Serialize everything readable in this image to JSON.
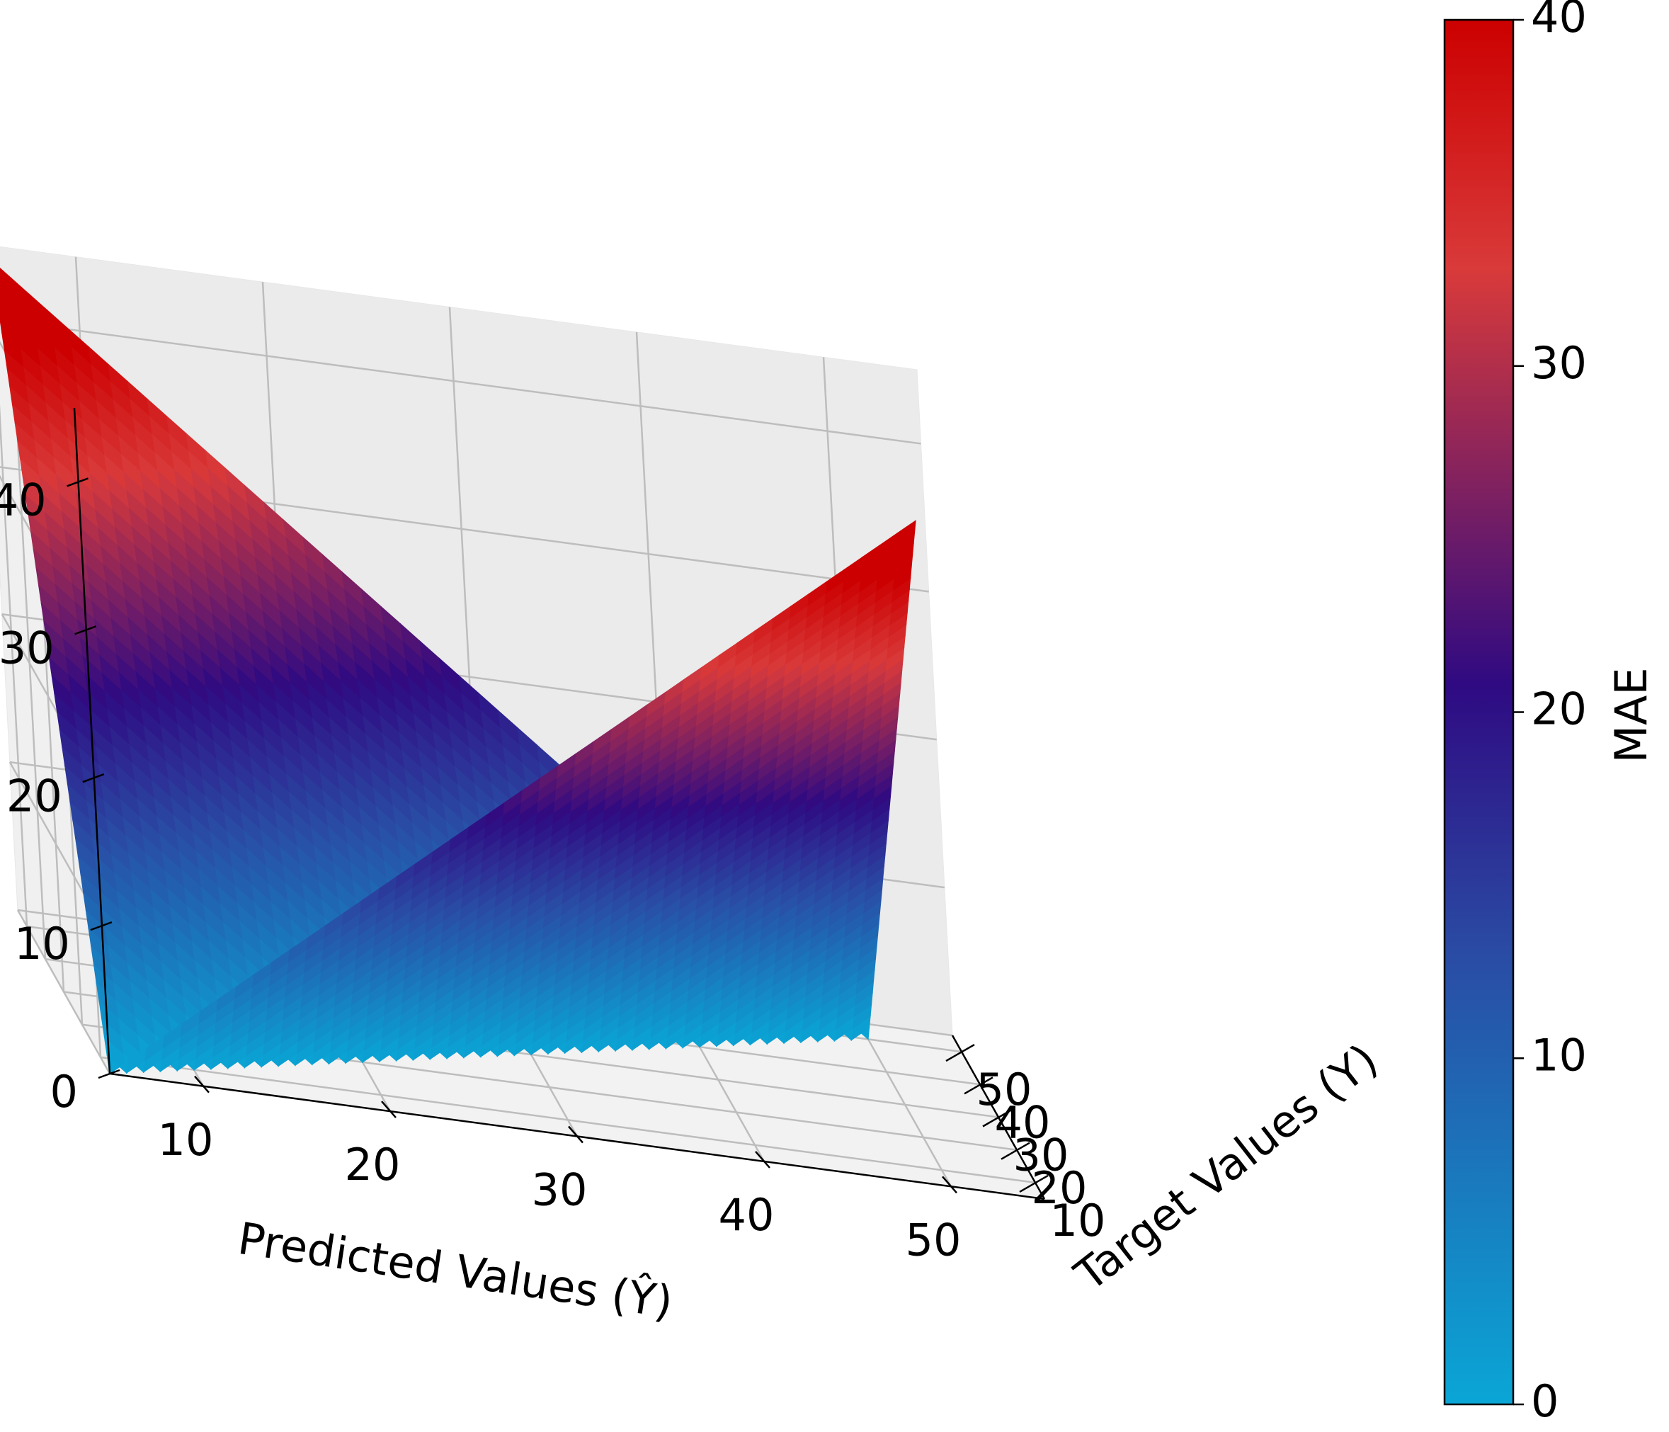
{
  "chart_data": {
    "type": "surface3d",
    "title": "",
    "function": "abs(predicted - target)",
    "x": {
      "label": "Predicted Values ($\\hat{Y}$)",
      "label_display": "Predicted Values (Ŷ)",
      "range": [
        5,
        55
      ],
      "ticks": [
        "10",
        "20",
        "30",
        "40",
        "50"
      ]
    },
    "y": {
      "label": "Target Values ($Y$)",
      "label_display": "Target Values (Y)",
      "range": [
        5,
        55
      ],
      "ticks": [
        "10",
        "20",
        "30",
        "40",
        "50"
      ]
    },
    "z": {
      "label": "",
      "range": [
        0,
        45
      ],
      "ticks": [
        "0",
        "10",
        "20",
        "30",
        "40"
      ]
    },
    "grid": true,
    "surface": {
      "predicted_range": [
        5,
        50
      ],
      "target_range": [
        5,
        50
      ],
      "steps": 45,
      "corners": [
        {
          "predicted": 5,
          "target": 5,
          "mae": 0
        },
        {
          "predicted": 50,
          "target": 5,
          "mae": 45
        },
        {
          "predicted": 50,
          "target": 50,
          "mae": 0
        },
        {
          "predicted": 5,
          "target": 50,
          "mae": 45
        }
      ]
    },
    "colorbar": {
      "label": "MAE",
      "range": [
        0,
        40
      ],
      "ticks": [
        "0",
        "10",
        "20",
        "30",
        "40"
      ],
      "colors": [
        "#0aa6d6",
        "#2a4aa3",
        "#2f0a82",
        "#d93a3a",
        "#cc0000"
      ]
    }
  }
}
